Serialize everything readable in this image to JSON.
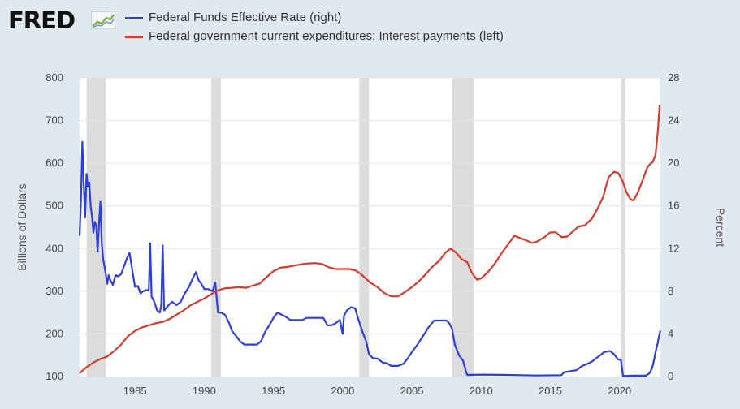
{
  "brand": {
    "name": "FRED"
  },
  "chart_data": {
    "type": "line",
    "title": "",
    "x_range": [
      1981,
      2022.95
    ],
    "x_ticks": [
      1985,
      1990,
      1995,
      2000,
      2005,
      2010,
      2015,
      2020
    ],
    "y_left": {
      "label": "Billions of Dollars",
      "range": [
        100,
        800
      ],
      "ticks": [
        100,
        200,
        300,
        400,
        500,
        600,
        700,
        800
      ]
    },
    "y_right": {
      "label": "Percent",
      "range": [
        0,
        28
      ],
      "ticks": [
        0,
        4,
        8,
        12,
        16,
        20,
        24,
        28
      ]
    },
    "grid": true,
    "legend_placement": "top-left",
    "recessions": [
      [
        1981.5,
        1982.9
      ],
      [
        1990.5,
        1991.2
      ],
      [
        2001.2,
        2001.9
      ],
      [
        2007.9,
        2009.5
      ],
      [
        2020.1,
        2020.4
      ]
    ],
    "series": [
      {
        "name": "Federal Funds Effective Rate (right)",
        "axis": "right",
        "color": "#2e3fd8",
        "points": [
          [
            1981.0,
            13.2
          ],
          [
            1981.1,
            16.5
          ],
          [
            1981.2,
            22.0
          ],
          [
            1981.3,
            18.0
          ],
          [
            1981.4,
            14.9
          ],
          [
            1981.5,
            19.0
          ],
          [
            1981.6,
            17.8
          ],
          [
            1981.7,
            18.2
          ],
          [
            1981.8,
            16.0
          ],
          [
            1981.9,
            15.0
          ],
          [
            1982.0,
            13.5
          ],
          [
            1982.1,
            14.5
          ],
          [
            1982.2,
            14.2
          ],
          [
            1982.3,
            11.7
          ],
          [
            1982.4,
            14.3
          ],
          [
            1982.5,
            16.4
          ],
          [
            1982.6,
            12.5
          ],
          [
            1982.7,
            11.0
          ],
          [
            1982.8,
            10.3
          ],
          [
            1982.9,
            9.5
          ],
          [
            1983.0,
            8.7
          ],
          [
            1983.1,
            9.5
          ],
          [
            1983.2,
            9.1
          ],
          [
            1983.4,
            8.6
          ],
          [
            1983.6,
            9.5
          ],
          [
            1983.8,
            9.4
          ],
          [
            1984.0,
            9.6
          ],
          [
            1984.2,
            10.3
          ],
          [
            1984.4,
            11.0
          ],
          [
            1984.6,
            11.6
          ],
          [
            1984.8,
            10.0
          ],
          [
            1985.0,
            8.4
          ],
          [
            1985.2,
            8.5
          ],
          [
            1985.4,
            7.8
          ],
          [
            1985.6,
            8.0
          ],
          [
            1985.8,
            8.1
          ],
          [
            1986.0,
            8.1
          ],
          [
            1986.1,
            12.5
          ],
          [
            1986.2,
            7.5
          ],
          [
            1986.4,
            7.0
          ],
          [
            1986.6,
            6.2
          ],
          [
            1986.8,
            6.0
          ],
          [
            1986.9,
            6.8
          ],
          [
            1987.0,
            12.3
          ],
          [
            1987.1,
            6.2
          ],
          [
            1987.3,
            6.5
          ],
          [
            1987.5,
            6.8
          ],
          [
            1987.7,
            7.0
          ],
          [
            1987.9,
            6.8
          ],
          [
            1988.0,
            6.7
          ],
          [
            1988.3,
            7.0
          ],
          [
            1988.6,
            7.8
          ],
          [
            1988.9,
            8.4
          ],
          [
            1989.2,
            9.3
          ],
          [
            1989.4,
            9.8
          ],
          [
            1989.6,
            9.0
          ],
          [
            1989.8,
            8.7
          ],
          [
            1990.0,
            8.2
          ],
          [
            1990.3,
            8.2
          ],
          [
            1990.6,
            8.0
          ],
          [
            1990.8,
            8.8
          ],
          [
            1991.0,
            6.0
          ],
          [
            1991.2,
            6.0
          ],
          [
            1991.5,
            5.8
          ],
          [
            1991.8,
            5.0
          ],
          [
            1992.0,
            4.3
          ],
          [
            1992.3,
            3.8
          ],
          [
            1992.6,
            3.3
          ],
          [
            1992.9,
            3.0
          ],
          [
            1993.2,
            3.0
          ],
          [
            1993.5,
            3.0
          ],
          [
            1993.8,
            3.0
          ],
          [
            1994.1,
            3.3
          ],
          [
            1994.4,
            4.2
          ],
          [
            1994.7,
            4.8
          ],
          [
            1995.0,
            5.5
          ],
          [
            1995.3,
            6.0
          ],
          [
            1995.6,
            5.8
          ],
          [
            1995.9,
            5.6
          ],
          [
            1996.2,
            5.3
          ],
          [
            1996.5,
            5.3
          ],
          [
            1996.8,
            5.3
          ],
          [
            1997.1,
            5.3
          ],
          [
            1997.4,
            5.5
          ],
          [
            1997.7,
            5.5
          ],
          [
            1998.0,
            5.5
          ],
          [
            1998.3,
            5.5
          ],
          [
            1998.6,
            5.5
          ],
          [
            1998.9,
            4.8
          ],
          [
            1999.2,
            4.8
          ],
          [
            1999.5,
            5.0
          ],
          [
            1999.8,
            5.3
          ],
          [
            2000.0,
            4.0
          ],
          [
            2000.1,
            5.7
          ],
          [
            2000.3,
            6.2
          ],
          [
            2000.6,
            6.5
          ],
          [
            2000.9,
            6.4
          ],
          [
            2001.1,
            5.5
          ],
          [
            2001.4,
            4.3
          ],
          [
            2001.7,
            3.3
          ],
          [
            2001.9,
            2.1
          ],
          [
            2002.2,
            1.7
          ],
          [
            2002.5,
            1.7
          ],
          [
            2002.9,
            1.3
          ],
          [
            2003.2,
            1.25
          ],
          [
            2003.5,
            1.0
          ],
          [
            2004.0,
            1.0
          ],
          [
            2004.4,
            1.2
          ],
          [
            2004.7,
            1.7
          ],
          [
            2005.0,
            2.3
          ],
          [
            2005.4,
            3.0
          ],
          [
            2005.8,
            3.8
          ],
          [
            2006.2,
            4.6
          ],
          [
            2006.6,
            5.25
          ],
          [
            2007.0,
            5.25
          ],
          [
            2007.5,
            5.25
          ],
          [
            2007.7,
            5.0
          ],
          [
            2007.9,
            4.5
          ],
          [
            2008.1,
            3.0
          ],
          [
            2008.4,
            2.0
          ],
          [
            2008.7,
            1.5
          ],
          [
            2008.9,
            0.5
          ],
          [
            2009.0,
            0.15
          ],
          [
            2010.0,
            0.18
          ],
          [
            2012.0,
            0.15
          ],
          [
            2014.0,
            0.1
          ],
          [
            2015.8,
            0.13
          ],
          [
            2016.0,
            0.4
          ],
          [
            2016.9,
            0.6
          ],
          [
            2017.3,
            1.0
          ],
          [
            2017.7,
            1.2
          ],
          [
            2018.0,
            1.4
          ],
          [
            2018.5,
            1.9
          ],
          [
            2018.9,
            2.3
          ],
          [
            2019.3,
            2.4
          ],
          [
            2019.6,
            2.1
          ],
          [
            2019.9,
            1.6
          ],
          [
            2020.1,
            1.55
          ],
          [
            2020.25,
            0.05
          ],
          [
            2021.0,
            0.08
          ],
          [
            2021.9,
            0.08
          ],
          [
            2022.15,
            0.3
          ],
          [
            2022.35,
            0.8
          ],
          [
            2022.5,
            1.6
          ],
          [
            2022.6,
            2.3
          ],
          [
            2022.75,
            3.1
          ],
          [
            2022.85,
            3.8
          ],
          [
            2022.95,
            4.3
          ]
        ]
      },
      {
        "name": "Federal government current expenditures: Interest payments (left)",
        "axis": "left",
        "color": "#d73a2d",
        "points": [
          [
            1981.0,
            108
          ],
          [
            1981.5,
            122
          ],
          [
            1982.0,
            133
          ],
          [
            1982.5,
            141
          ],
          [
            1983.0,
            147
          ],
          [
            1983.5,
            160
          ],
          [
            1984.0,
            175
          ],
          [
            1984.5,
            195
          ],
          [
            1985.0,
            207
          ],
          [
            1985.5,
            215
          ],
          [
            1986.0,
            220
          ],
          [
            1986.5,
            225
          ],
          [
            1987.0,
            228
          ],
          [
            1987.5,
            235
          ],
          [
            1988.0,
            245
          ],
          [
            1988.5,
            255
          ],
          [
            1989.0,
            267
          ],
          [
            1989.5,
            275
          ],
          [
            1990.0,
            283
          ],
          [
            1990.5,
            293
          ],
          [
            1991.0,
            302
          ],
          [
            1991.5,
            307
          ],
          [
            1992.0,
            308
          ],
          [
            1992.5,
            310
          ],
          [
            1993.0,
            308
          ],
          [
            1993.5,
            313
          ],
          [
            1994.0,
            318
          ],
          [
            1994.5,
            333
          ],
          [
            1995.0,
            347
          ],
          [
            1995.5,
            355
          ],
          [
            1996.0,
            357
          ],
          [
            1996.5,
            360
          ],
          [
            1997.0,
            363
          ],
          [
            1997.5,
            365
          ],
          [
            1998.0,
            366
          ],
          [
            1998.5,
            364
          ],
          [
            1999.0,
            356
          ],
          [
            1999.5,
            352
          ],
          [
            2000.0,
            352
          ],
          [
            2000.5,
            352
          ],
          [
            2001.0,
            348
          ],
          [
            2001.5,
            335
          ],
          [
            2002.0,
            320
          ],
          [
            2002.5,
            310
          ],
          [
            2003.0,
            296
          ],
          [
            2003.5,
            288
          ],
          [
            2004.0,
            288
          ],
          [
            2004.5,
            298
          ],
          [
            2005.0,
            310
          ],
          [
            2005.5,
            323
          ],
          [
            2006.0,
            340
          ],
          [
            2006.5,
            358
          ],
          [
            2007.0,
            372
          ],
          [
            2007.4,
            390
          ],
          [
            2007.8,
            400
          ],
          [
            2008.2,
            390
          ],
          [
            2008.6,
            375
          ],
          [
            2009.0,
            368
          ],
          [
            2009.3,
            345
          ],
          [
            2009.7,
            327
          ],
          [
            2010.0,
            330
          ],
          [
            2010.5,
            345
          ],
          [
            2011.0,
            365
          ],
          [
            2011.5,
            390
          ],
          [
            2012.0,
            412
          ],
          [
            2012.4,
            430
          ],
          [
            2012.8,
            425
          ],
          [
            2013.2,
            420
          ],
          [
            2013.7,
            413
          ],
          [
            2014.0,
            416
          ],
          [
            2014.5,
            425
          ],
          [
            2015.0,
            438
          ],
          [
            2015.4,
            438
          ],
          [
            2015.8,
            427
          ],
          [
            2016.2,
            428
          ],
          [
            2016.7,
            442
          ],
          [
            2017.0,
            451
          ],
          [
            2017.5,
            455
          ],
          [
            2018.0,
            470
          ],
          [
            2018.4,
            493
          ],
          [
            2018.8,
            520
          ],
          [
            2019.2,
            567
          ],
          [
            2019.6,
            580
          ],
          [
            2019.9,
            577
          ],
          [
            2020.2,
            560
          ],
          [
            2020.5,
            532
          ],
          [
            2020.8,
            515
          ],
          [
            2021.0,
            513
          ],
          [
            2021.3,
            530
          ],
          [
            2021.7,
            563
          ],
          [
            2022.0,
            590
          ],
          [
            2022.2,
            598
          ],
          [
            2022.4,
            603
          ],
          [
            2022.6,
            620
          ],
          [
            2022.75,
            670
          ],
          [
            2022.9,
            737
          ]
        ]
      }
    ]
  }
}
